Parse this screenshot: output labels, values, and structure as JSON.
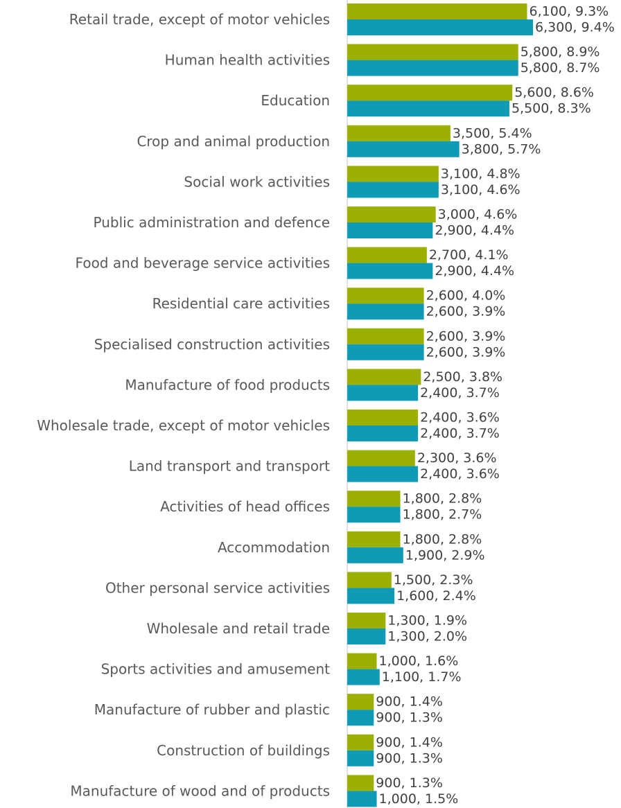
{
  "chart_data": {
    "type": "bar",
    "orientation": "horizontal",
    "title": "",
    "xlabel": "",
    "ylabel": "",
    "legend": "none",
    "grid": false,
    "xlim": [
      0,
      6300
    ],
    "categories": [
      "Retail trade, except of motor vehicles",
      "Human health activities",
      "Education",
      "Crop and animal production",
      "Social work activities",
      "Public administration and defence",
      "Food and beverage service activities",
      "Residential care activities",
      "Specialised construction activities",
      "Manufacture of food products",
      "Wholesale trade, except of motor vehicles",
      "Land transport and transport",
      "Activities of head offices",
      "Accommodation",
      "Other personal service activities",
      "Wholesale and retail trade",
      "Sports activities and amusement",
      "Manufacture of rubber and plastic",
      "Construction of buildings",
      "Manufacture of wood and of products"
    ],
    "series": [
      {
        "color": "#9bb000",
        "values": [
          6100,
          5800,
          5600,
          3500,
          3100,
          3000,
          2700,
          2600,
          2600,
          2500,
          2400,
          2300,
          1800,
          1800,
          1500,
          1300,
          1000,
          900,
          900,
          900
        ],
        "labels": [
          "6,100, 9.3%",
          "5,800, 8.9%",
          "5,600, 8.6%",
          "3,500, 5.4%",
          "3,100, 4.8%",
          "3,000, 4.6%",
          "2,700, 4.1%",
          "2,600, 4.0%",
          "2,600, 3.9%",
          "2,500, 3.8%",
          "2,400, 3.6%",
          "2,300, 3.6%",
          "1,800, 2.8%",
          "1,800, 2.8%",
          "1,500, 2.3%",
          "1,300, 1.9%",
          "1,000, 1.6%",
          "900, 1.4%",
          "900, 1.4%",
          "900, 1.3%"
        ]
      },
      {
        "color": "#0f9bb5",
        "values": [
          6300,
          5800,
          5500,
          3800,
          3100,
          2900,
          2900,
          2600,
          2600,
          2400,
          2400,
          2400,
          1800,
          1900,
          1600,
          1300,
          1100,
          900,
          900,
          1000
        ],
        "labels": [
          "6,300, 9.4%",
          "5,800, 8.7%",
          "5,500, 8.3%",
          "3,800, 5.7%",
          "3,100, 4.6%",
          "2,900, 4.4%",
          "2,900, 4.4%",
          "2,600, 3.9%",
          "2,600, 3.9%",
          "2,400, 3.7%",
          "2,400, 3.7%",
          "2,400, 3.6%",
          "1,800, 2.7%",
          "1,900, 2.9%",
          "1,600, 2.4%",
          "1,300, 2.0%",
          "1,100, 1.7%",
          "900, 1.3%",
          "900, 1.3%",
          "1,000, 1.5%"
        ]
      }
    ]
  }
}
